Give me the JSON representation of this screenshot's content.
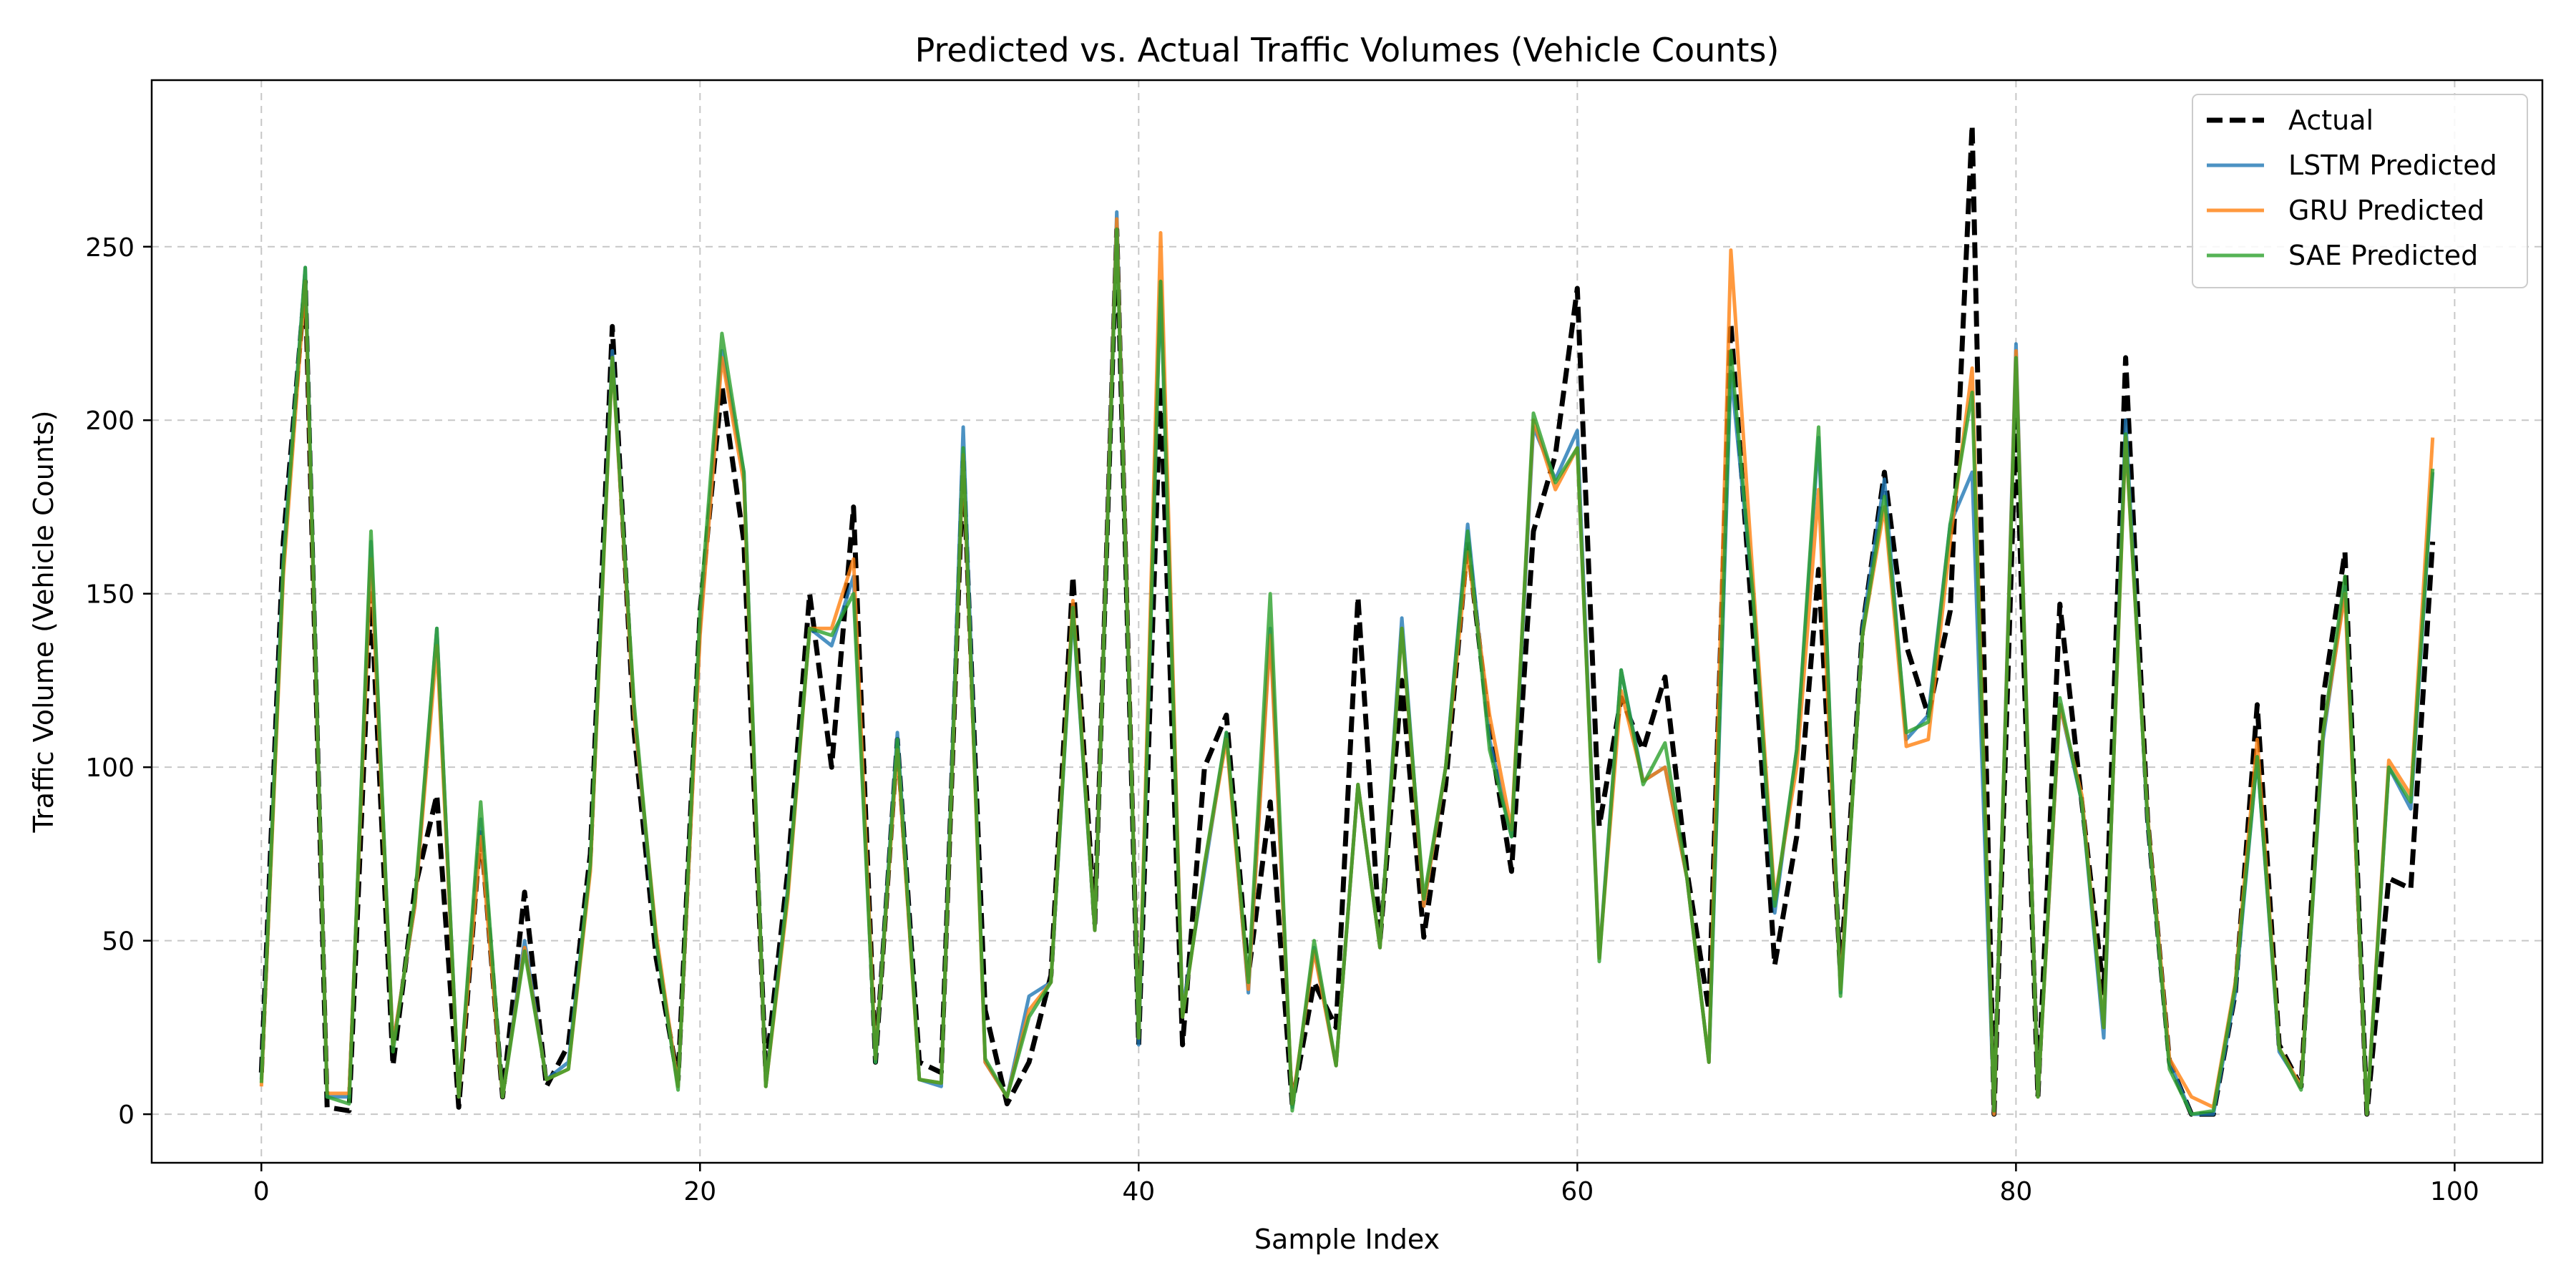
{
  "chart_data": {
    "type": "line",
    "title": "Predicted vs. Actual Traffic Volumes (Vehicle Counts)",
    "xlabel": "Sample Index",
    "ylabel": "Traffic Volume (Vehicle Counts)",
    "xlim": [
      -5,
      104
    ],
    "ylim": [
      -14,
      298
    ],
    "xticks": [
      0,
      20,
      40,
      60,
      80,
      100
    ],
    "yticks": [
      0,
      50,
      100,
      150,
      200,
      250
    ],
    "grid": true,
    "legend_position": "top-right",
    "series": [
      {
        "name": "Actual",
        "color": "#000000",
        "dashed": true,
        "values": [
          12,
          165,
          240,
          2,
          1,
          150,
          14,
          65,
          92,
          2,
          82,
          5,
          64,
          8,
          20,
          75,
          227,
          110,
          45,
          10,
          145,
          210,
          165,
          12,
          70,
          150,
          100,
          175,
          15,
          108,
          15,
          12,
          188,
          30,
          3,
          15,
          40,
          155,
          55,
          255,
          20,
          210,
          20,
          100,
          115,
          40,
          90,
          3,
          38,
          25,
          149,
          50,
          125,
          51,
          95,
          165,
          110,
          70,
          168,
          190,
          238,
          83,
          120,
          105,
          126,
          70,
          30,
          228,
          140,
          43,
          80,
          157,
          40,
          140,
          185,
          135,
          115,
          145,
          285,
          0,
          200,
          5,
          147,
          90,
          35,
          218,
          85,
          15,
          0,
          0,
          35,
          118,
          20,
          8,
          120,
          162,
          0,
          68,
          65,
          165
        ]
      },
      {
        "name": "LSTM Predicted",
        "color": "#1f77b4",
        "values": [
          10,
          160,
          244,
          5,
          5,
          165,
          20,
          60,
          140,
          5,
          85,
          5,
          50,
          10,
          15,
          72,
          220,
          115,
          50,
          8,
          140,
          220,
          185,
          8,
          65,
          140,
          135,
          155,
          15,
          110,
          10,
          8,
          198,
          15,
          5,
          34,
          38,
          145,
          53,
          260,
          20,
          240,
          30,
          70,
          110,
          35,
          140,
          2,
          48,
          14,
          95,
          48,
          143,
          60,
          100,
          170,
          108,
          80,
          198,
          183,
          197,
          45,
          128,
          96,
          100,
          68,
          15,
          214,
          150,
          58,
          105,
          195,
          35,
          140,
          183,
          108,
          115,
          170,
          185,
          0,
          222,
          5,
          118,
          90,
          22,
          200,
          84,
          15,
          0,
          0,
          35,
          103,
          18,
          8,
          108,
          152,
          0,
          100,
          88,
          185
        ]
      },
      {
        "name": "GRU Predicted",
        "color": "#ff7f0e",
        "values": [
          8,
          155,
          240,
          6,
          6,
          160,
          20,
          60,
          135,
          5,
          80,
          5,
          48,
          10,
          13,
          70,
          218,
          115,
          52,
          8,
          138,
          218,
          182,
          8,
          62,
          140,
          140,
          160,
          16,
          105,
          10,
          9,
          190,
          15,
          5,
          30,
          38,
          148,
          53,
          258,
          22,
          254,
          28,
          72,
          108,
          36,
          138,
          3,
          47,
          14,
          95,
          48,
          140,
          60,
          100,
          162,
          115,
          82,
          200,
          180,
          192,
          45,
          122,
          96,
          100,
          68,
          15,
          249,
          155,
          62,
          100,
          180,
          36,
          138,
          175,
          106,
          108,
          165,
          215,
          0,
          220,
          5,
          118,
          92,
          25,
          195,
          86,
          16,
          5,
          2,
          38,
          108,
          19,
          8,
          110,
          150,
          0,
          102,
          92,
          195
        ]
      },
      {
        "name": "SAE Predicted",
        "color": "#2ca02c",
        "values": [
          9,
          158,
          244,
          5,
          3,
          168,
          18,
          62,
          140,
          5,
          90,
          5,
          47,
          10,
          13,
          72,
          218,
          118,
          50,
          7,
          145,
          225,
          185,
          8,
          64,
          140,
          138,
          150,
          15,
          108,
          10,
          9,
          192,
          16,
          5,
          28,
          38,
          146,
          53,
          255,
          22,
          240,
          28,
          72,
          110,
          38,
          150,
          1,
          50,
          14,
          95,
          48,
          140,
          62,
          100,
          168,
          105,
          80,
          202,
          182,
          192,
          44,
          128,
          95,
          107,
          68,
          15,
          220,
          150,
          60,
          105,
          198,
          34,
          138,
          178,
          110,
          113,
          170,
          208,
          1,
          218,
          5,
          120,
          90,
          25,
          196,
          85,
          13,
          0,
          1,
          37,
          103,
          19,
          7,
          110,
          155,
          0,
          100,
          90,
          186
        ]
      }
    ]
  }
}
